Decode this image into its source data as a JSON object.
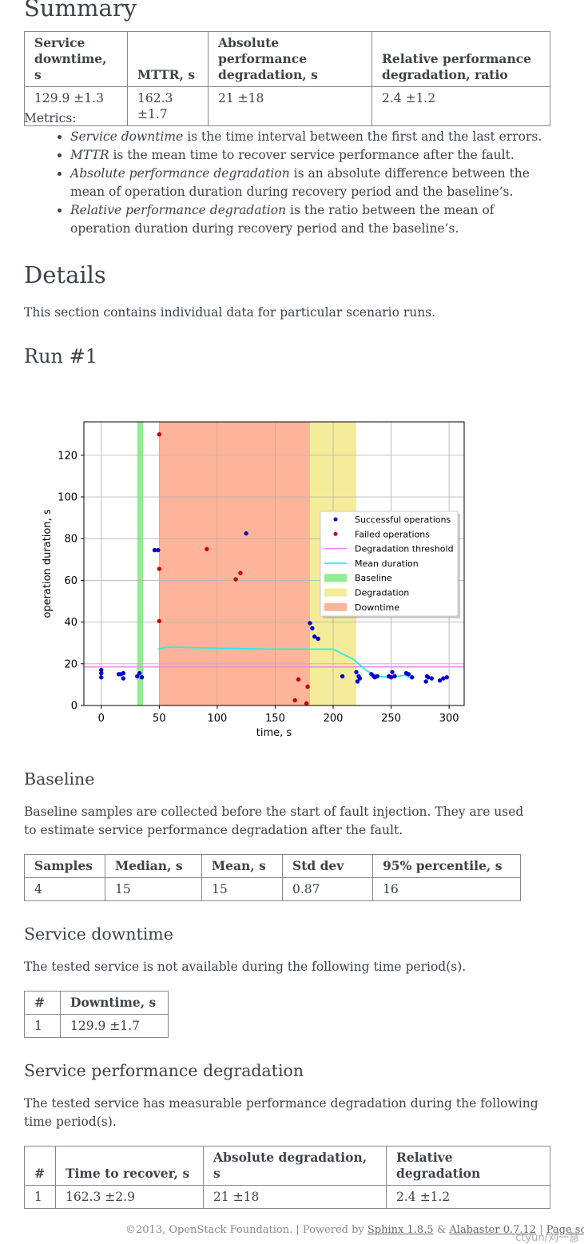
{
  "summary": {
    "title": "Summary",
    "headers": [
      "Service downtime, s",
      "MTTR, s",
      "Absolute performance degradation, s",
      "Relative performance degradation, ratio"
    ],
    "row": [
      "129.9 ±1.3",
      "162.3 ±1.7",
      "21 ±18",
      "2.4 ±1.2"
    ],
    "metrics_label": "Metrics:",
    "metrics": [
      {
        "term": "Service downtime",
        "text": " is the time interval between the first and the last errors."
      },
      {
        "term": "MTTR",
        "text": " is the mean time to recover service performance after the fault."
      },
      {
        "term": "Absolute performance degradation",
        "text": " is an absolute difference between the mean of operation duration during recovery period and the baseline’s."
      },
      {
        "term": "Relative performance degradation",
        "text": " is the ratio between the mean of operation duration during recovery period and the baseline’s."
      }
    ]
  },
  "details": {
    "title": "Details",
    "intro": "This section contains individual data for particular scenario runs."
  },
  "run": {
    "title": "Run #1"
  },
  "chart_data": {
    "type": "scatter",
    "xlabel": "time, s",
    "ylabel": "operation duration, s",
    "xlim": [
      -15,
      313
    ],
    "ylim": [
      0,
      136
    ],
    "xticks": [
      0,
      50,
      100,
      150,
      200,
      250,
      300
    ],
    "yticks": [
      0,
      20,
      40,
      60,
      80,
      100,
      120
    ],
    "grid": true,
    "legend_position": "right",
    "colors": {
      "success": "#0000cc",
      "failed": "#cc0000",
      "threshold": "#ee82ee",
      "mean": "#22eeee",
      "baseline": "#90ee90",
      "degradation": "#f5ec9a",
      "downtime": "#fdb49a"
    },
    "regions": [
      {
        "name": "Baseline",
        "x": [
          31,
          36
        ]
      },
      {
        "name": "Downtime",
        "x": [
          50,
          180
        ]
      },
      {
        "name": "Degradation",
        "x": [
          180,
          220
        ]
      }
    ],
    "threshold": 18.5,
    "series": [
      {
        "name": "Successful operations",
        "points": [
          [
            0,
            17
          ],
          [
            0,
            15.5
          ],
          [
            0,
            13.5
          ],
          [
            15,
            15
          ],
          [
            17,
            15
          ],
          [
            19,
            15.5
          ],
          [
            19,
            13
          ],
          [
            31,
            14
          ],
          [
            33,
            15.5
          ],
          [
            35,
            13.5
          ],
          [
            46,
            74.5
          ],
          [
            49,
            74.5
          ],
          [
            125,
            82.5
          ],
          [
            180,
            39.5
          ],
          [
            182,
            37
          ],
          [
            184,
            33
          ],
          [
            187,
            32
          ],
          [
            208,
            14
          ],
          [
            220,
            16
          ],
          [
            221,
            11.5
          ],
          [
            222,
            14
          ],
          [
            223,
            13
          ],
          [
            233,
            15
          ],
          [
            235,
            14
          ],
          [
            236,
            13.5
          ],
          [
            238,
            14
          ],
          [
            248,
            14
          ],
          [
            250,
            13.5
          ],
          [
            251,
            16
          ],
          [
            253,
            14
          ],
          [
            263,
            15.5
          ],
          [
            265,
            15
          ],
          [
            268,
            13.5
          ],
          [
            280,
            11.5
          ],
          [
            281,
            14
          ],
          [
            282,
            13.5
          ],
          [
            285,
            13
          ],
          [
            292,
            12
          ],
          [
            295,
            13
          ],
          [
            298,
            13.5
          ]
        ]
      },
      {
        "name": "Failed operations",
        "points": [
          [
            50,
            130
          ],
          [
            50,
            65.5
          ],
          [
            50,
            40.5
          ],
          [
            91,
            75
          ],
          [
            116,
            60.5
          ],
          [
            120,
            63.5
          ],
          [
            167,
            2.5
          ],
          [
            170,
            12.5
          ],
          [
            177,
            1
          ],
          [
            178,
            9
          ]
        ]
      },
      {
        "name": "Degradation threshold",
        "points": []
      },
      {
        "name": "Mean duration",
        "points": [
          [
            49,
            27
          ],
          [
            56,
            28
          ],
          [
            100,
            27.5
          ],
          [
            150,
            27
          ],
          [
            180,
            27
          ],
          [
            200,
            27
          ],
          [
            218,
            22
          ],
          [
            228,
            17
          ],
          [
            238,
            14
          ],
          [
            250,
            13.5
          ],
          [
            262,
            14.5
          ],
          [
            268,
            13
          ]
        ]
      },
      {
        "name": "Baseline",
        "points": []
      },
      {
        "name": "Degradation",
        "points": []
      },
      {
        "name": "Downtime",
        "points": []
      }
    ]
  },
  "baseline": {
    "title": "Baseline",
    "text": "Baseline samples are collected before the start of fault injection. They are used to estimate service performance degradation after the fault.",
    "headers": [
      "Samples",
      "Median, s",
      "Mean, s",
      "Std dev",
      "95% percentile, s"
    ],
    "row": [
      "4",
      "15",
      "15",
      "0.87",
      "16"
    ]
  },
  "downtime": {
    "title": "Service downtime",
    "text": "The tested service is not available during the following time period(s).",
    "headers": [
      "#",
      "Downtime, s"
    ],
    "row": [
      "1",
      "129.9 ±1.7"
    ]
  },
  "degradation": {
    "title": "Service performance degradation",
    "text": "The tested service has measurable performance degradation during the following time period(s).",
    "headers": [
      "#",
      "Time to recover, s",
      "Absolute degradation, s",
      "Relative degradation"
    ],
    "row": [
      "1",
      "162.3 ±2.9",
      "21 ±18",
      "2.4 ±1.2"
    ]
  },
  "footer": {
    "copyright": "©2013, OpenStack Foundation. | Powered by ",
    "sphinx": "Sphinx 1.8.5",
    "amp": " & ",
    "alabaster": "Alabaster 0.7.12",
    "sep": " | ",
    "source": "Page source",
    "watermark": "ctyun/刘一慧"
  }
}
